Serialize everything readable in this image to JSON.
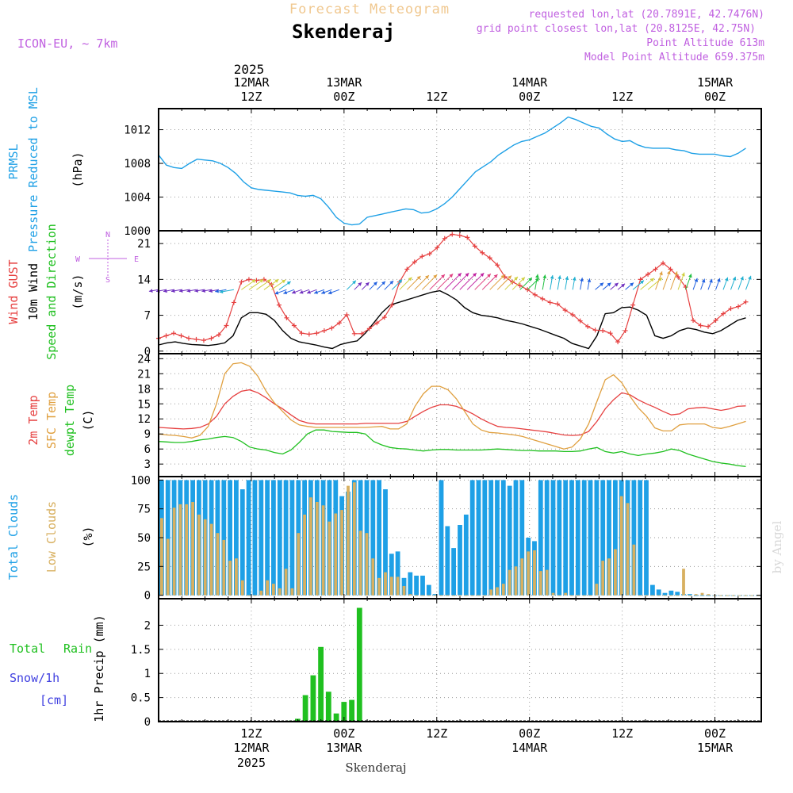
{
  "header": {
    "product": "Forecast Meteogram",
    "location": "Skenderaj",
    "model": "ICON-EU, ~ 7km",
    "requested": "requested lon,lat (20.7891E, 42.7476N)",
    "gridpoint": "grid point closest lon,lat (20.8125E, 42.75N)",
    "point_alt": "Point Altitude 613m",
    "model_alt": "Model Point Altitude 659.375m",
    "footer_location": "Skenderaj",
    "watermark": "by Angel"
  },
  "time_axis": {
    "top_year": "2025",
    "labels": [
      {
        "hour": 12,
        "l1": "12MAR",
        "l2": "12Z"
      },
      {
        "hour": 24,
        "l1": "13MAR",
        "l2": "00Z"
      },
      {
        "hour": 36,
        "l1": "",
        "l2": "12Z"
      },
      {
        "hour": 48,
        "l1": "14MAR",
        "l2": "00Z"
      },
      {
        "hour": 60,
        "l1": "",
        "l2": "12Z"
      },
      {
        "hour": 72,
        "l1": "15MAR",
        "l2": "00Z"
      }
    ],
    "bottom_labels": [
      {
        "hour": 12,
        "l1": "12Z",
        "l2": "12MAR",
        "l3": "2025"
      },
      {
        "hour": 24,
        "l1": "00Z",
        "l2": "13MAR",
        "l3": ""
      },
      {
        "hour": 36,
        "l1": "12Z",
        "l2": "",
        "l3": ""
      },
      {
        "hour": 48,
        "l1": "00Z",
        "l2": "14MAR",
        "l3": ""
      },
      {
        "hour": 60,
        "l1": "12Z",
        "l2": "",
        "l3": ""
      },
      {
        "hour": 72,
        "l1": "00Z",
        "l2": "15MAR",
        "l3": ""
      }
    ]
  },
  "colors": {
    "pressure": "#1ea0e6",
    "gust": "#e64040",
    "wind": "#000000",
    "wind_dir_label": "#20c020",
    "temp2m": "#e64040",
    "sfc": "#e0a040",
    "dewpt": "#20c020",
    "total_clouds": "#1ea0e6",
    "low_clouds": "#d8b060",
    "rain": "#20c020",
    "snow": "#4040e0",
    "header_orange": "#f0c890",
    "header_purple": "#c060e0"
  },
  "chart_data": [
    {
      "type": "line",
      "panel": "pressure",
      "ylabels": [
        "PRMSL",
        "Pressure Reduced to MSL",
        "(hPa)"
      ],
      "yticks": [
        1000,
        1004,
        1008,
        1012
      ],
      "ylim": [
        1000,
        1014.5
      ],
      "series": [
        {
          "name": "PRMSL",
          "x": [
            0,
            1,
            2,
            3,
            4,
            5,
            6,
            7,
            8,
            9,
            10,
            11,
            12,
            13,
            14,
            15,
            16,
            17,
            18,
            19,
            20,
            21,
            22,
            23,
            24,
            25,
            26,
            27,
            28,
            29,
            30,
            31,
            32,
            33,
            34,
            35,
            36,
            37,
            38,
            39,
            40,
            41,
            42,
            43,
            44,
            45,
            46,
            47,
            48,
            49,
            50,
            51,
            52,
            53,
            54,
            55,
            56,
            57,
            58,
            59,
            60,
            61,
            62,
            63,
            64,
            65,
            66,
            67,
            68,
            69,
            70,
            71,
            72,
            73,
            74,
            75,
            76
          ],
          "values": [
            1009,
            1007.8,
            1007.5,
            1007.4,
            1008,
            1008.5,
            1008.4,
            1008.3,
            1008,
            1007.5,
            1006.8,
            1005.8,
            1005.1,
            1004.9,
            1004.8,
            1004.7,
            1004.6,
            1004.5,
            1004.2,
            1004.1,
            1004.2,
            1003.8,
            1002.8,
            1001.6,
            1000.9,
            1000.7,
            1000.8,
            1001.6,
            1001.8,
            1002,
            1002.2,
            1002.4,
            1002.6,
            1002.5,
            1002.1,
            1002.2,
            1002.6,
            1003.2,
            1004,
            1005,
            1006,
            1007,
            1007.6,
            1008.2,
            1009,
            1009.6,
            1010.2,
            1010.6,
            1010.8,
            1011.2,
            1011.6,
            1012.2,
            1012.8,
            1013.5,
            1013.2,
            1012.8,
            1012.4,
            1012.2,
            1011.5,
            1010.9,
            1010.6,
            1010.7,
            1010.2,
            1009.9,
            1009.8,
            1009.8,
            1009.8,
            1009.6,
            1009.5,
            1009.2,
            1009.1,
            1009.1,
            1009.1,
            1008.9,
            1008.8,
            1009.2,
            1009.8
          ]
        }
      ]
    },
    {
      "type": "line",
      "panel": "wind",
      "ylabels": [
        "Wind GUST",
        "10m Wind",
        "Speed and Direction",
        "(m/s)"
      ],
      "yticks": [
        0,
        7,
        14,
        21
      ],
      "ylim": [
        -0.5,
        23.5
      ],
      "compass": {
        "n": "N",
        "s": "S",
        "w": "W",
        "e": "E"
      },
      "series": [
        {
          "name": "Wind GUST",
          "values": [
            2.5,
            3,
            3.5,
            3,
            2.5,
            2.3,
            2.1,
            2.5,
            3.2,
            5,
            9.5,
            13.5,
            14,
            13.8,
            14,
            13,
            9,
            6.5,
            5,
            3.5,
            3.3,
            3.5,
            4,
            4.5,
            5.5,
            7.1,
            3.4,
            3.4,
            4.4,
            5.5,
            6.6,
            9,
            13.5,
            16,
            17.4,
            18.5,
            19,
            20.2,
            22,
            22.8,
            22.6,
            22.2,
            20.5,
            19.2,
            18.2,
            16.8,
            14.5,
            13.5,
            12.8,
            12,
            11,
            10.2,
            9.5,
            9.2,
            8,
            7.1,
            5.9,
            4.8,
            4.1,
            4,
            3.5,
            1.8,
            4,
            9,
            14,
            15,
            16,
            17.2,
            16,
            14.5,
            12.5,
            6,
            5,
            4.8,
            6,
            7.3,
            8.3,
            8.7,
            9.6
          ]
        },
        {
          "name": "10m Wind",
          "values": [
            1.2,
            1.6,
            1.8,
            1.5,
            1.3,
            1.2,
            1.1,
            1.3,
            1.6,
            3,
            6.5,
            7.5,
            7.5,
            7.2,
            6,
            4,
            2.5,
            1.8,
            1.5,
            1.2,
            0.8,
            0.5,
            1.3,
            1.7,
            2,
            3.5,
            5.5,
            7.5,
            9,
            9.5,
            10,
            10.5,
            11,
            11.5,
            11.8,
            11,
            10,
            8.5,
            7.5,
            7,
            6.8,
            6.5,
            6,
            5.7,
            5.3,
            4.8,
            4.3,
            3.7,
            3.1,
            2.5,
            1.5,
            1,
            0.5,
            3,
            7.3,
            7.5,
            8.5,
            8.6,
            8,
            7,
            3,
            2.5,
            3,
            4,
            4.5,
            4.2,
            3.7,
            3.4,
            4,
            5,
            6,
            6.5
          ]
        }
      ]
    },
    {
      "type": "line",
      "panel": "temperature",
      "ylabels": [
        "2m Temp",
        "SFC Temp",
        "dewpt Temp",
        "(C)"
      ],
      "yticks": [
        3,
        6,
        9,
        12,
        15,
        18,
        21,
        24
      ],
      "ylim": [
        0.5,
        25
      ],
      "series": [
        {
          "name": "2m Temp",
          "values": [
            10.3,
            10.2,
            10.1,
            10,
            10.1,
            10.3,
            11,
            12.5,
            15,
            16.5,
            17.5,
            17.8,
            17.2,
            16.2,
            15,
            14,
            12.8,
            11.7,
            11.2,
            11,
            11,
            11,
            11,
            11,
            11,
            11.1,
            11.1,
            11.1,
            11.1,
            11.1,
            11.5,
            12.5,
            13.5,
            14.3,
            14.8,
            14.8,
            14.5,
            13.8,
            13,
            12,
            11.2,
            10.5,
            10.3,
            10.2,
            10,
            9.8,
            9.6,
            9.4,
            9.1,
            8.8,
            8.7,
            8.8,
            9.5,
            11.5,
            14,
            15.8,
            17.2,
            16.8,
            15.8,
            15,
            14.3,
            13.5,
            12.8,
            13,
            14,
            14.2,
            14.3,
            14,
            13.7,
            14,
            14.5,
            14.6
          ]
        },
        {
          "name": "SFC Temp",
          "values": [
            9,
            8.8,
            8.7,
            8.5,
            8.2,
            8.7,
            10.5,
            15,
            21,
            23,
            23.2,
            22.5,
            20.5,
            17.5,
            15.2,
            13.5,
            11.8,
            10.8,
            10.5,
            10.3,
            10.3,
            10.3,
            10.3,
            10.3,
            10.3,
            10.3,
            10.4,
            10.5,
            10,
            10,
            11,
            14.5,
            17,
            18.5,
            18.5,
            17.8,
            16,
            13.5,
            11,
            9.8,
            9.3,
            9.2,
            9,
            8.8,
            8.5,
            8,
            7.5,
            7,
            6.5,
            6,
            6.4,
            8,
            11,
            15.5,
            19.8,
            20.8,
            19.2,
            16.5,
            14.2,
            12.5,
            10.2,
            9.6,
            9.6,
            10.8,
            11,
            11,
            11,
            10.3,
            10.1,
            10.5,
            11,
            11.5
          ]
        },
        {
          "name": "dewpt Temp",
          "values": [
            7.5,
            7.4,
            7.3,
            7.3,
            7.5,
            7.8,
            8,
            8.3,
            8.5,
            8.3,
            7.5,
            6.4,
            6,
            5.8,
            5.3,
            5,
            5.8,
            7.3,
            9,
            9.8,
            9.8,
            9.5,
            9.4,
            9.3,
            9.3,
            9,
            7.5,
            6.8,
            6.3,
            6.1,
            6,
            5.8,
            5.6,
            5.8,
            5.9,
            5.9,
            5.8,
            5.8,
            5.8,
            5.8,
            5.9,
            6,
            5.9,
            5.8,
            5.7,
            5.7,
            5.6,
            5.6,
            5.6,
            5.5,
            5.5,
            5.6,
            6,
            6.3,
            5.5,
            5.2,
            5.5,
            5,
            4.7,
            5,
            5.2,
            5.5,
            6,
            5.7,
            5,
            4.5,
            4,
            3.5,
            3.2,
            3,
            2.7,
            2.5
          ]
        }
      ]
    },
    {
      "type": "bar",
      "panel": "clouds",
      "ylabels": [
        "Total Clouds",
        "Low Clouds",
        "(%)"
      ],
      "yticks": [
        0,
        25,
        50,
        75,
        100
      ],
      "ylim": [
        -3,
        103
      ],
      "series": [
        {
          "name": "Total Clouds",
          "values": [
            100,
            100,
            100,
            100,
            100,
            100,
            100,
            100,
            100,
            100,
            100,
            100,
            100,
            92,
            100,
            100,
            100,
            100,
            100,
            100,
            100,
            100,
            100,
            100,
            100,
            100,
            100,
            100,
            100,
            86,
            90,
            100,
            100,
            100,
            100,
            100,
            92,
            36,
            38,
            15,
            20,
            17,
            17,
            9,
            1,
            100,
            60,
            41,
            61,
            70,
            100,
            100,
            100,
            100,
            100,
            100,
            95,
            100,
            100,
            50,
            47,
            100,
            100,
            100,
            100,
            100,
            100,
            100,
            100,
            100,
            100,
            100,
            100,
            100,
            100,
            100,
            100,
            100,
            100,
            9,
            5,
            2,
            4,
            3,
            1,
            1,
            0,
            0,
            0,
            0,
            0,
            0,
            0,
            0,
            0,
            0,
            0
          ]
        },
        {
          "name": "Low Clouds",
          "values": [
            67,
            49,
            76,
            79,
            79,
            81,
            70,
            66,
            62,
            54,
            48,
            30,
            32,
            13,
            0,
            0,
            4,
            13,
            10,
            6,
            23,
            6,
            54,
            70,
            85,
            81,
            78,
            64,
            71,
            74,
            95,
            98,
            56,
            54,
            32,
            15,
            20,
            16,
            16,
            8,
            1,
            0,
            0,
            0,
            0,
            0,
            0,
            0,
            0,
            0,
            0,
            0,
            0,
            5,
            7,
            10,
            22,
            25,
            32,
            38,
            39,
            21,
            22,
            2,
            0,
            2,
            0,
            0,
            0,
            0,
            10,
            30,
            32,
            40,
            86,
            80,
            44,
            0,
            0,
            0,
            0,
            0,
            0,
            0,
            23,
            0,
            1,
            2,
            1,
            0,
            0,
            0,
            0,
            0,
            0,
            0,
            0
          ]
        }
      ]
    },
    {
      "type": "bar",
      "panel": "precip",
      "ylabels": [
        "Total",
        "Rain",
        "Snow/1h",
        "[cm]",
        "1hr Precip (mm)"
      ],
      "yticks": [
        0,
        0.5,
        1,
        1.5,
        2
      ],
      "ytick_labels": [
        "0",
        "0.5",
        "1",
        "1.5",
        "2"
      ],
      "ylim": [
        0,
        2.55
      ],
      "series": [
        {
          "name": "Rain",
          "x": [
            17,
            18,
            19,
            20,
            21,
            22,
            23,
            24,
            25
          ],
          "values": [
            0.02,
            0.06,
            0.55,
            0.96,
            1.55,
            0.62,
            0.17,
            0.41,
            0.45
          ],
          "x2": [
            26
          ],
          "values2": [
            2.36
          ]
        }
      ]
    }
  ]
}
